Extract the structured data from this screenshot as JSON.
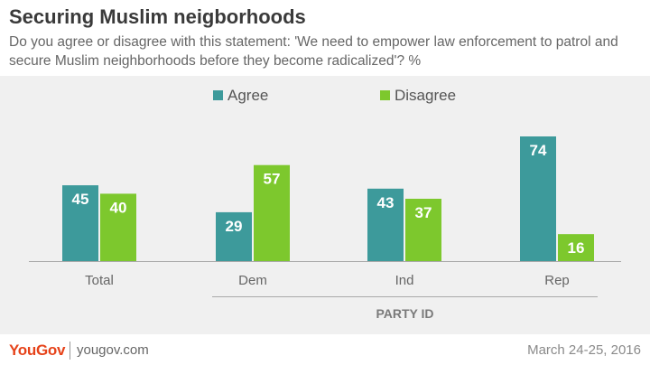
{
  "header": {
    "title": "Securing Muslim neigborhoods",
    "subtitle": "Do you agree or disagree with this statement: 'We need to empower law enforcement to patrol and secure Muslim neighborhoods before they become radicalized'? %"
  },
  "chart_data": {
    "type": "bar",
    "categories": [
      "Total",
      "Dem",
      "Ind",
      "Rep"
    ],
    "series": [
      {
        "name": "Agree",
        "color": "#3d9a9b",
        "values": [
          45,
          29,
          43,
          74
        ]
      },
      {
        "name": "Disagree",
        "color": "#7dc82d",
        "values": [
          40,
          57,
          37,
          16
        ]
      }
    ],
    "group_label": "PARTY ID",
    "group_categories": [
      "Dem",
      "Ind",
      "Rep"
    ],
    "ylim": [
      0,
      74
    ],
    "legend_position": "top-center",
    "grid": false
  },
  "footer": {
    "brand": "YouGov",
    "site": "yougov.com",
    "date": "March 24-25, 2016"
  }
}
